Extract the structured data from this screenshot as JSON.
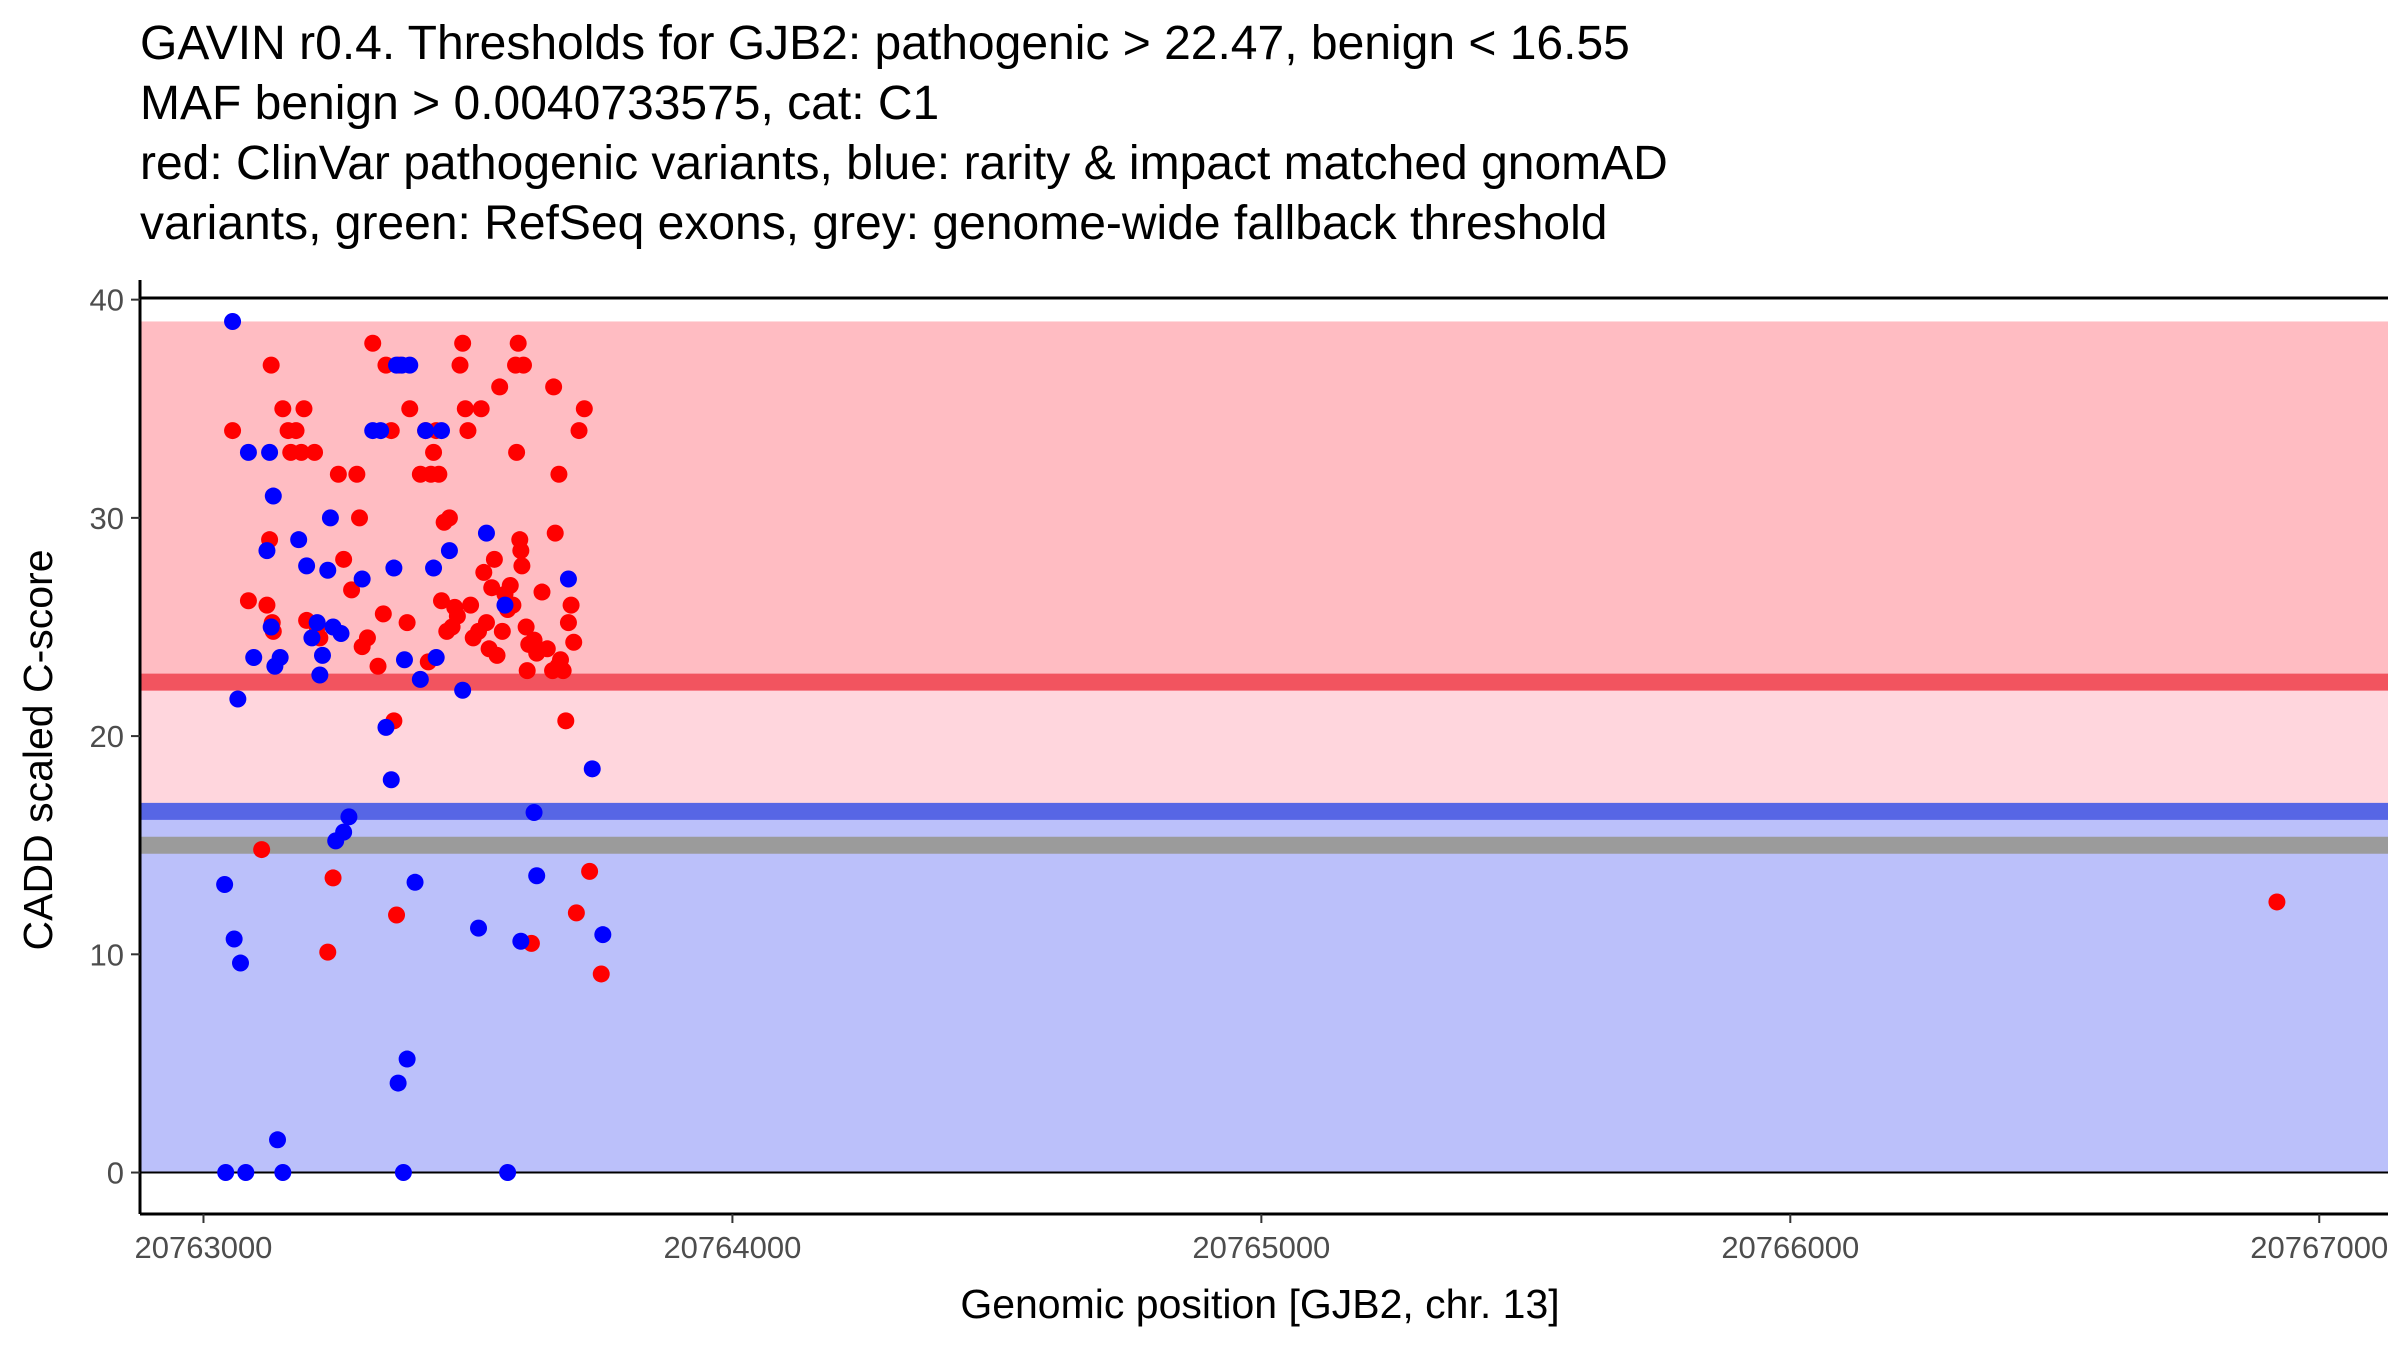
{
  "title": {
    "line1": "GAVIN r0.4. Thresholds for GJB2: pathogenic > 22.47, benign < 16.55",
    "line2": "MAF benign > 0.0040733575, cat: C1",
    "line3": "red: ClinVar pathogenic variants, blue: rarity & impact matched gnomAD",
    "line4": "variants, green: RefSeq exons, grey: genome-wide fallback threshold"
  },
  "colors": {
    "pathogenic_region": "#ffbcc2",
    "intermediate_region": "#ffd6dd",
    "benign_region": "#bbc0fa",
    "pathogenic_threshold_line": "#f2545f",
    "benign_threshold_line": "#5766e5",
    "fallback_threshold_line": "#9b9b9b",
    "pathogenic_points": "#ff0000",
    "gnomad_points": "#0000ff"
  },
  "chart_data": {
    "type": "scatter",
    "xlabel": "Genomic position [GJB2, chr. 13]",
    "ylabel": "CADD scaled C-score",
    "xlim": [
      20762880,
      20767130
    ],
    "ylim": [
      -1.9,
      40.9
    ],
    "xticks": [
      20763000,
      20764000,
      20765000,
      20766000,
      20767000
    ],
    "xtick_labels": [
      "20763000",
      "20764000",
      "20765000",
      "20766000",
      "20767000"
    ],
    "yticks": [
      0,
      10,
      20,
      30,
      40
    ],
    "ytick_labels": [
      "0",
      "10",
      "20",
      "30",
      "40"
    ],
    "regions": [
      {
        "name": "pathogenic",
        "y0": 22.47,
        "y1": 39.0
      },
      {
        "name": "intermediate",
        "y0": 16.55,
        "y1": 22.47
      },
      {
        "name": "benign",
        "y0": 0.0,
        "y1": 16.55
      }
    ],
    "threshold_lines": [
      {
        "name": "pathogenic-threshold",
        "y": 22.47
      },
      {
        "name": "benign-threshold",
        "y": 16.55
      },
      {
        "name": "fallback-threshold",
        "y": 15.0
      }
    ],
    "series": [
      {
        "name": "ClinVar pathogenic variants",
        "points": [
          [
            20763055,
            34.0
          ],
          [
            20763085,
            26.2
          ],
          [
            20763110,
            14.8
          ],
          [
            20763120,
            26.0
          ],
          [
            20763125,
            29.0
          ],
          [
            20763128,
            37.0
          ],
          [
            20763130,
            25.2
          ],
          [
            20763132,
            24.8
          ],
          [
            20763150,
            35.0
          ],
          [
            20763160,
            34.0
          ],
          [
            20763165,
            33.0
          ],
          [
            20763175,
            34.0
          ],
          [
            20763185,
            33.0
          ],
          [
            20763190,
            35.0
          ],
          [
            20763195,
            25.3
          ],
          [
            20763210,
            33.0
          ],
          [
            20763215,
            25.0
          ],
          [
            20763220,
            24.5
          ],
          [
            20763235,
            10.1
          ],
          [
            20763245,
            13.5
          ],
          [
            20763255,
            32.0
          ],
          [
            20763265,
            28.1
          ],
          [
            20763280,
            26.7
          ],
          [
            20763290,
            32.0
          ],
          [
            20763295,
            30.0
          ],
          [
            20763300,
            24.1
          ],
          [
            20763310,
            24.5
          ],
          [
            20763320,
            38.0
          ],
          [
            20763330,
            23.2
          ],
          [
            20763340,
            25.6
          ],
          [
            20763345,
            37.0
          ],
          [
            20763355,
            34.0
          ],
          [
            20763360,
            20.7
          ],
          [
            20763365,
            11.8
          ],
          [
            20763370,
            37.0
          ],
          [
            20763385,
            25.2
          ],
          [
            20763390,
            35.0
          ],
          [
            20763410,
            32.0
          ],
          [
            20763420,
            34.0
          ],
          [
            20763425,
            23.4
          ],
          [
            20763430,
            32.0
          ],
          [
            20763435,
            33.0
          ],
          [
            20763440,
            34.0
          ],
          [
            20763445,
            32.0
          ],
          [
            20763450,
            26.2
          ],
          [
            20763455,
            29.8
          ],
          [
            20763460,
            24.8
          ],
          [
            20763465,
            30.0
          ],
          [
            20763470,
            25.0
          ],
          [
            20763475,
            25.9
          ],
          [
            20763480,
            25.5
          ],
          [
            20763485,
            37.0
          ],
          [
            20763490,
            38.0
          ],
          [
            20763495,
            35.0
          ],
          [
            20763500,
            34.0
          ],
          [
            20763505,
            26.0
          ],
          [
            20763510,
            24.5
          ],
          [
            20763520,
            24.8
          ],
          [
            20763525,
            35.0
          ],
          [
            20763530,
            27.5
          ],
          [
            20763535,
            25.2
          ],
          [
            20763540,
            24.0
          ],
          [
            20763545,
            26.8
          ],
          [
            20763550,
            28.1
          ],
          [
            20763555,
            23.7
          ],
          [
            20763560,
            36.0
          ],
          [
            20763565,
            24.8
          ],
          [
            20763570,
            26.5
          ],
          [
            20763575,
            25.8
          ],
          [
            20763580,
            26.9
          ],
          [
            20763585,
            26.0
          ],
          [
            20763590,
            37.0
          ],
          [
            20763592,
            33.0
          ],
          [
            20763595,
            38.0
          ],
          [
            20763598,
            29.0
          ],
          [
            20763600,
            28.5
          ],
          [
            20763602,
            27.8
          ],
          [
            20763605,
            37.0
          ],
          [
            20763610,
            25.0
          ],
          [
            20763612,
            23.0
          ],
          [
            20763615,
            24.2
          ],
          [
            20763620,
            10.5
          ],
          [
            20763625,
            24.4
          ],
          [
            20763630,
            23.8
          ],
          [
            20763640,
            26.6
          ],
          [
            20763650,
            24.0
          ],
          [
            20763660,
            23.0
          ],
          [
            20763662,
            36.0
          ],
          [
            20763665,
            29.3
          ],
          [
            20763670,
            23.2
          ],
          [
            20763672,
            32.0
          ],
          [
            20763675,
            23.5
          ],
          [
            20763680,
            23.0
          ],
          [
            20763685,
            20.7
          ],
          [
            20763690,
            25.2
          ],
          [
            20763695,
            26.0
          ],
          [
            20763700,
            24.3
          ],
          [
            20763705,
            11.9
          ],
          [
            20763710,
            34.0
          ],
          [
            20763720,
            35.0
          ],
          [
            20763730,
            13.8
          ],
          [
            20763752,
            9.1
          ],
          [
            20766920,
            12.4
          ]
        ]
      },
      {
        "name": "rarity & impact matched gnomAD variants",
        "points": [
          [
            20763040,
            13.2
          ],
          [
            20763042,
            0.0
          ],
          [
            20763055,
            39.0
          ],
          [
            20763058,
            10.7
          ],
          [
            20763065,
            21.7
          ],
          [
            20763070,
            9.6
          ],
          [
            20763080,
            0.0
          ],
          [
            20763085,
            33.0
          ],
          [
            20763095,
            23.6
          ],
          [
            20763120,
            28.5
          ],
          [
            20763125,
            33.0
          ],
          [
            20763128,
            25.0
          ],
          [
            20763132,
            31.0
          ],
          [
            20763135,
            23.2
          ],
          [
            20763140,
            1.5
          ],
          [
            20763145,
            23.6
          ],
          [
            20763150,
            0.0
          ],
          [
            20763180,
            29.0
          ],
          [
            20763195,
            27.8
          ],
          [
            20763205,
            24.5
          ],
          [
            20763215,
            25.2
          ],
          [
            20763220,
            22.8
          ],
          [
            20763225,
            23.7
          ],
          [
            20763235,
            27.6
          ],
          [
            20763240,
            30.0
          ],
          [
            20763245,
            25.0
          ],
          [
            20763250,
            15.2
          ],
          [
            20763260,
            24.7
          ],
          [
            20763265,
            15.6
          ],
          [
            20763275,
            16.3
          ],
          [
            20763300,
            27.2
          ],
          [
            20763320,
            34.0
          ],
          [
            20763335,
            34.0
          ],
          [
            20763345,
            20.4
          ],
          [
            20763355,
            18.0
          ],
          [
            20763360,
            27.7
          ],
          [
            20763365,
            37.0
          ],
          [
            20763368,
            4.1
          ],
          [
            20763375,
            37.0
          ],
          [
            20763378,
            0.0
          ],
          [
            20763380,
            23.5
          ],
          [
            20763385,
            5.2
          ],
          [
            20763390,
            37.0
          ],
          [
            20763400,
            13.3
          ],
          [
            20763410,
            22.6
          ],
          [
            20763420,
            34.0
          ],
          [
            20763435,
            27.7
          ],
          [
            20763440,
            23.6
          ],
          [
            20763450,
            34.0
          ],
          [
            20763465,
            28.5
          ],
          [
            20763490,
            22.1
          ],
          [
            20763520,
            11.2
          ],
          [
            20763535,
            29.3
          ],
          [
            20763570,
            26.0
          ],
          [
            20763575,
            0.0
          ],
          [
            20763600,
            10.6
          ],
          [
            20763625,
            16.5
          ],
          [
            20763630,
            13.6
          ],
          [
            20763690,
            27.2
          ],
          [
            20763735,
            18.5
          ],
          [
            20763755,
            10.9
          ]
        ]
      }
    ]
  }
}
